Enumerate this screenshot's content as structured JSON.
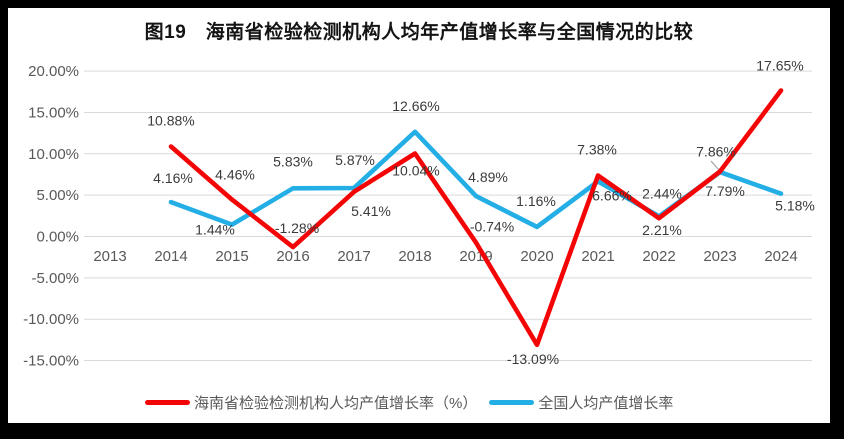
{
  "title": "图19　海南省检验检测机构人均年产值增长率与全国情况的比较",
  "legend": {
    "items": [
      {
        "label": "海南省检验检测机构人均产值增长率（%）",
        "color": "#F40505"
      },
      {
        "label": "全国人均产值增长率",
        "color": "#24AEE6"
      }
    ]
  },
  "axes": {
    "y_tick_labels": [
      "20.00%",
      "15.00%",
      "10.00%",
      "5.00%",
      "0.00%",
      "-5.00%",
      "-10.00%",
      "-15.00%"
    ],
    "y_tick_values": [
      20,
      15,
      10,
      5,
      0,
      -5,
      -10,
      -15
    ],
    "x_tick_labels": [
      "2013",
      "2014",
      "2015",
      "2016",
      "2017",
      "2018",
      "2019",
      "2020",
      "2021",
      "2022",
      "2023",
      "2024"
    ]
  },
  "chart_data": {
    "type": "line",
    "title": "图19　海南省检验检测机构人均年产值增长率与全国情况的比较",
    "categories": [
      "2013",
      "2014",
      "2015",
      "2016",
      "2017",
      "2018",
      "2019",
      "2020",
      "2021",
      "2022",
      "2023",
      "2024"
    ],
    "series": [
      {
        "name": "全国人均产值增长率",
        "color": "#24AEE6",
        "values": [
          null,
          4.16,
          1.44,
          5.83,
          5.87,
          12.66,
          4.89,
          1.16,
          6.66,
          2.44,
          7.79,
          5.18
        ],
        "data_labels": [
          null,
          "4.16%",
          "1.44%",
          "5.83%",
          "5.87%",
          "12.66%",
          "4.89%",
          "1.16%",
          "6.66%",
          "2.44%",
          "7.79%",
          "5.18%"
        ],
        "label_offsets": [
          null,
          [
            2,
            -24
          ],
          [
            -17,
            5
          ],
          [
            0,
            -27
          ],
          [
            1,
            -28
          ],
          [
            1,
            -26
          ],
          [
            12,
            -19
          ],
          [
            -1,
            -26
          ],
          [
            14,
            14
          ],
          [
            3,
            -23
          ],
          [
            5,
            19
          ],
          [
            14,
            12
          ]
        ]
      },
      {
        "name": "海南省检验检测机构人均产值增长率（%）",
        "color": "#F40505",
        "values": [
          null,
          10.88,
          4.46,
          -1.28,
          5.41,
          10.04,
          -0.74,
          -13.09,
          7.38,
          2.21,
          7.86,
          17.65
        ],
        "data_labels": [
          null,
          "10.88%",
          "4.46%",
          "-1.28%",
          "5.41%",
          "10.04%",
          "-0.74%",
          "-13.09%",
          "7.38%",
          "2.21%",
          "7.86%",
          "17.65%"
        ],
        "label_offsets": [
          null,
          [
            0,
            -26
          ],
          [
            3,
            -25
          ],
          [
            4,
            -19
          ],
          [
            17,
            19
          ],
          [
            1,
            17
          ],
          [
            16,
            -16
          ],
          [
            -4,
            14
          ],
          [
            -1,
            -26
          ],
          [
            3,
            12
          ],
          [
            -4,
            -20
          ],
          [
            -1,
            -25
          ]
        ]
      }
    ],
    "xlabel": "",
    "ylabel": "",
    "ylim": [
      -15,
      20
    ],
    "ytick_step": 5,
    "grid": true,
    "legend_position": "bottom"
  },
  "colors": {
    "hainan_line": "#F40505",
    "national_line": "#24AEE6",
    "gridline": "#D9D9D9",
    "axis_text": "#595959",
    "data_label_text": "#3B3B3B",
    "title_text": "#141414",
    "leader_line": "#A6A6A6",
    "chart_background": "#FFFFFF",
    "frame_background": "#000000"
  }
}
